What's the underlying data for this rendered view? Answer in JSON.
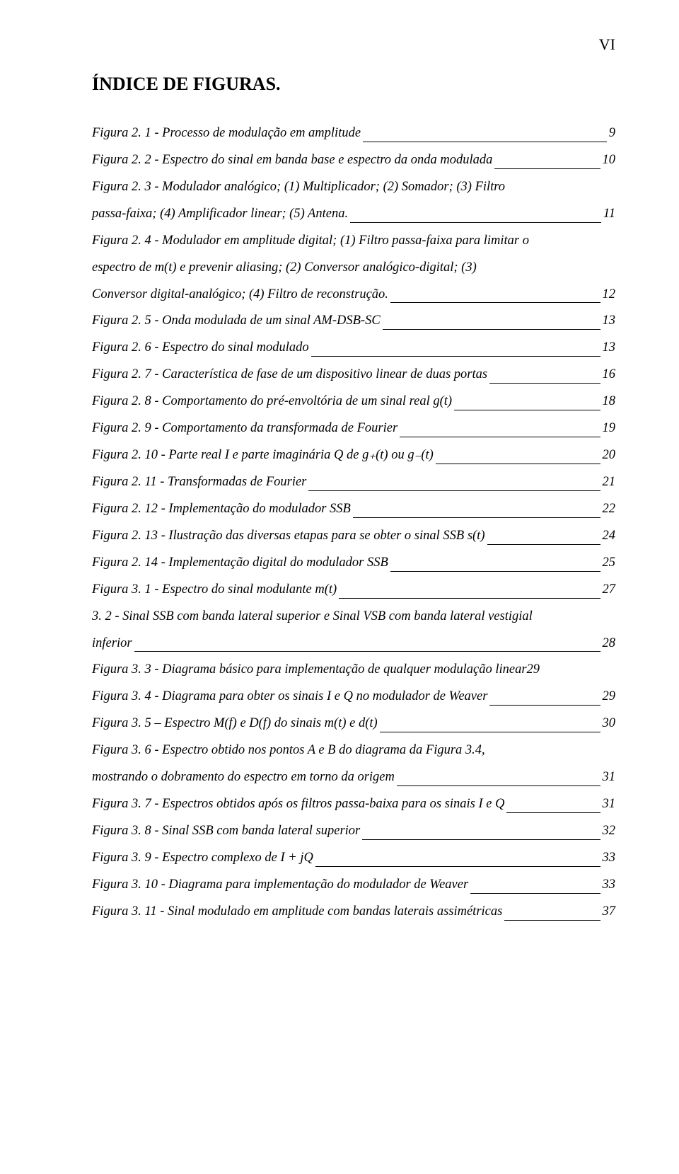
{
  "page_number": "VI",
  "title": "ÍNDICE DE FIGURAS.",
  "entries": [
    {
      "lines": [
        "Figura 2. 1 - Processo de modulação em amplitude"
      ],
      "page": "9"
    },
    {
      "lines": [
        "Figura 2. 2 - Espectro do sinal em banda base e espectro da onda modulada"
      ],
      "page": "10"
    },
    {
      "lines": [
        "Figura 2. 3 - Modulador analógico; (1) Multiplicador; (2) Somador; (3) Filtro",
        "passa-faixa; (4) Amplificador linear; (5) Antena."
      ],
      "page": "11"
    },
    {
      "lines": [
        "Figura 2. 4 - Modulador em amplitude digital; (1) Filtro passa-faixa para limitar o",
        "espectro de m(t) e prevenir aliasing; (2) Conversor analógico-digital; (3)",
        "Conversor digital-analógico; (4) Filtro de reconstrução."
      ],
      "page": "12"
    },
    {
      "lines": [
        "Figura 2. 5 - Onda modulada de um sinal AM-DSB-SC"
      ],
      "page": "13"
    },
    {
      "lines": [
        "Figura 2. 6 - Espectro do sinal modulado"
      ],
      "page": "13"
    },
    {
      "lines": [
        "Figura 2. 7 - Característica de fase de um dispositivo linear de duas portas"
      ],
      "page": "16"
    },
    {
      "lines": [
        "Figura 2. 8 - Comportamento do pré-envoltória de um sinal real g(t)"
      ],
      "page": "18"
    },
    {
      "lines": [
        "Figura 2. 9 - Comportamento da transformada de Fourier"
      ],
      "page": "19"
    },
    {
      "lines": [
        "Figura 2. 10 - Parte real I e parte imaginária Q de g₊(t) ou g₋(t)"
      ],
      "page": "20"
    },
    {
      "lines": [
        "Figura 2. 11 - Transformadas de Fourier"
      ],
      "page": "21"
    },
    {
      "lines": [
        "Figura 2. 12 - Implementação do modulador SSB"
      ],
      "page": "22"
    },
    {
      "lines": [
        "Figura 2. 13 - Ilustração das diversas etapas para se obter o sinal SSB s(t)"
      ],
      "page": "24"
    },
    {
      "lines": [
        "Figura 2. 14 - Implementação digital do modulador SSB"
      ],
      "page": "25"
    },
    {
      "lines": [
        "Figura 3. 1 - Espectro do sinal modulante m(t)"
      ],
      "page": "27"
    },
    {
      "lines": [
        "3. 2 - Sinal SSB com banda lateral superior e Sinal VSB com banda lateral vestigial",
        "inferior"
      ],
      "page": "28"
    },
    {
      "lines": [
        "Figura 3. 3 - Diagrama básico para implementação de qualquer modulação linear"
      ],
      "page": "29",
      "no_leader": true
    },
    {
      "lines": [
        "Figura 3. 4 - Diagrama para obter os sinais I e Q no modulador de Weaver"
      ],
      "page": "29"
    },
    {
      "lines": [
        "Figura 3. 5 – Espectro M(f) e D(f) do sinais m(t) e d(t)"
      ],
      "page": "30"
    },
    {
      "lines": [
        "Figura 3. 6 - Espectro obtido nos pontos A e B do diagrama da Figura 3.4,",
        "mostrando o dobramento do espectro em torno da origem"
      ],
      "page": "31"
    },
    {
      "lines": [
        "Figura 3. 7 - Espectros obtidos após os filtros passa-baixa para os sinais I e Q"
      ],
      "page": "31"
    },
    {
      "lines": [
        "Figura 3. 8 - Sinal SSB com banda lateral superior"
      ],
      "page": "32"
    },
    {
      "lines": [
        "Figura 3. 9 - Espectro complexo de I + jQ"
      ],
      "page": "33"
    },
    {
      "lines": [
        "Figura 3. 10 - Diagrama para implementação do modulador de Weaver"
      ],
      "page": "33"
    },
    {
      "lines": [
        "Figura 3. 11 - Sinal modulado em amplitude com bandas laterais assimétricas"
      ],
      "page": "37"
    }
  ]
}
